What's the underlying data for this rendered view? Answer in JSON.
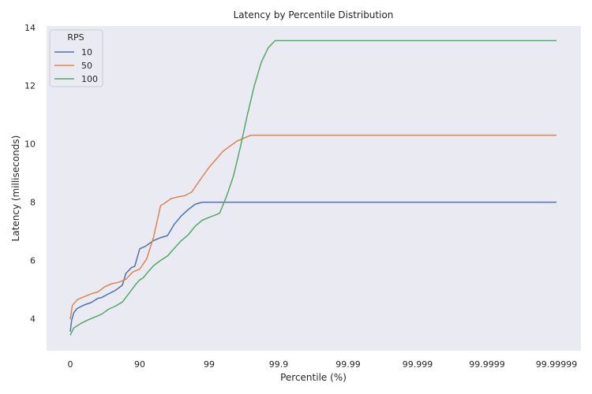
{
  "chart_data": {
    "type": "line",
    "title": "Latency by Percentile Distribution",
    "xlabel": "Percentile (%)",
    "ylabel": "Latency (milliseconds)",
    "x_ticks": [
      "0",
      "90",
      "99",
      "99.9",
      "99.99",
      "99.999",
      "99.9999",
      "99.99999"
    ],
    "x_scale": "log-percentile (1/(1-p/100)), tick positions 0..7",
    "ylim": [
      2.9,
      14.05
    ],
    "y_ticks": [
      4,
      6,
      8,
      10,
      12,
      14
    ],
    "grid": false,
    "background": "#eaeaf2",
    "legend": {
      "title": "RPS",
      "placement": "top-left"
    },
    "series": [
      {
        "name": "10",
        "color": "#4c72b0",
        "x": [
          0,
          0.02,
          0.05,
          0.1,
          0.2,
          0.3,
          0.4,
          0.45,
          0.55,
          0.65,
          0.75,
          0.8,
          0.88,
          0.93,
          1.0,
          1.08,
          1.2,
          1.3,
          1.4,
          1.5,
          1.6,
          1.7,
          1.8,
          1.9,
          1.96,
          2.1,
          3.0,
          4.0,
          5.0,
          6.0,
          7.0
        ],
        "y": [
          3.55,
          3.95,
          4.2,
          4.35,
          4.47,
          4.55,
          4.7,
          4.72,
          4.85,
          4.97,
          5.15,
          5.55,
          5.75,
          5.8,
          6.4,
          6.48,
          6.68,
          6.78,
          6.85,
          7.25,
          7.53,
          7.75,
          7.93,
          8.0,
          8.0,
          8.0,
          8.0,
          8.0,
          8.0,
          8.0,
          8.0
        ]
      },
      {
        "name": "50",
        "color": "#dd8452",
        "x": [
          0,
          0.03,
          0.1,
          0.2,
          0.3,
          0.4,
          0.5,
          0.6,
          0.7,
          0.8,
          0.9,
          1.0,
          1.1,
          1.2,
          1.3,
          1.35,
          1.45,
          1.55,
          1.65,
          1.75,
          1.85,
          2.0,
          2.2,
          2.4,
          2.6,
          2.74,
          3.0,
          4.0,
          5.0,
          6.0,
          7.0
        ],
        "y": [
          3.98,
          4.45,
          4.65,
          4.75,
          4.85,
          4.92,
          5.1,
          5.2,
          5.25,
          5.35,
          5.6,
          5.7,
          6.05,
          6.8,
          7.88,
          7.95,
          8.12,
          8.18,
          8.22,
          8.35,
          8.7,
          9.2,
          9.75,
          10.1,
          10.3,
          10.3,
          10.3,
          10.3,
          10.3,
          10.3,
          10.3
        ]
      },
      {
        "name": "100",
        "color": "#55a868",
        "x": [
          0,
          0.05,
          0.15,
          0.25,
          0.35,
          0.45,
          0.55,
          0.65,
          0.75,
          0.85,
          0.95,
          1.0,
          1.05,
          1.1,
          1.2,
          1.3,
          1.4,
          1.5,
          1.6,
          1.7,
          1.8,
          1.9,
          2.0,
          2.08,
          2.15,
          2.25,
          2.35,
          2.45,
          2.55,
          2.65,
          2.75,
          2.85,
          2.95,
          3.0,
          4.0,
          5.0,
          6.0,
          7.0
        ],
        "y": [
          3.43,
          3.68,
          3.83,
          3.95,
          4.05,
          4.15,
          4.32,
          4.43,
          4.57,
          4.88,
          5.2,
          5.33,
          5.4,
          5.55,
          5.82,
          6.0,
          6.15,
          6.42,
          6.68,
          6.88,
          7.18,
          7.38,
          7.48,
          7.55,
          7.62,
          8.2,
          8.9,
          9.9,
          11.0,
          12.0,
          12.8,
          13.3,
          13.55,
          13.55,
          13.55,
          13.55,
          13.55,
          13.55
        ]
      }
    ]
  }
}
